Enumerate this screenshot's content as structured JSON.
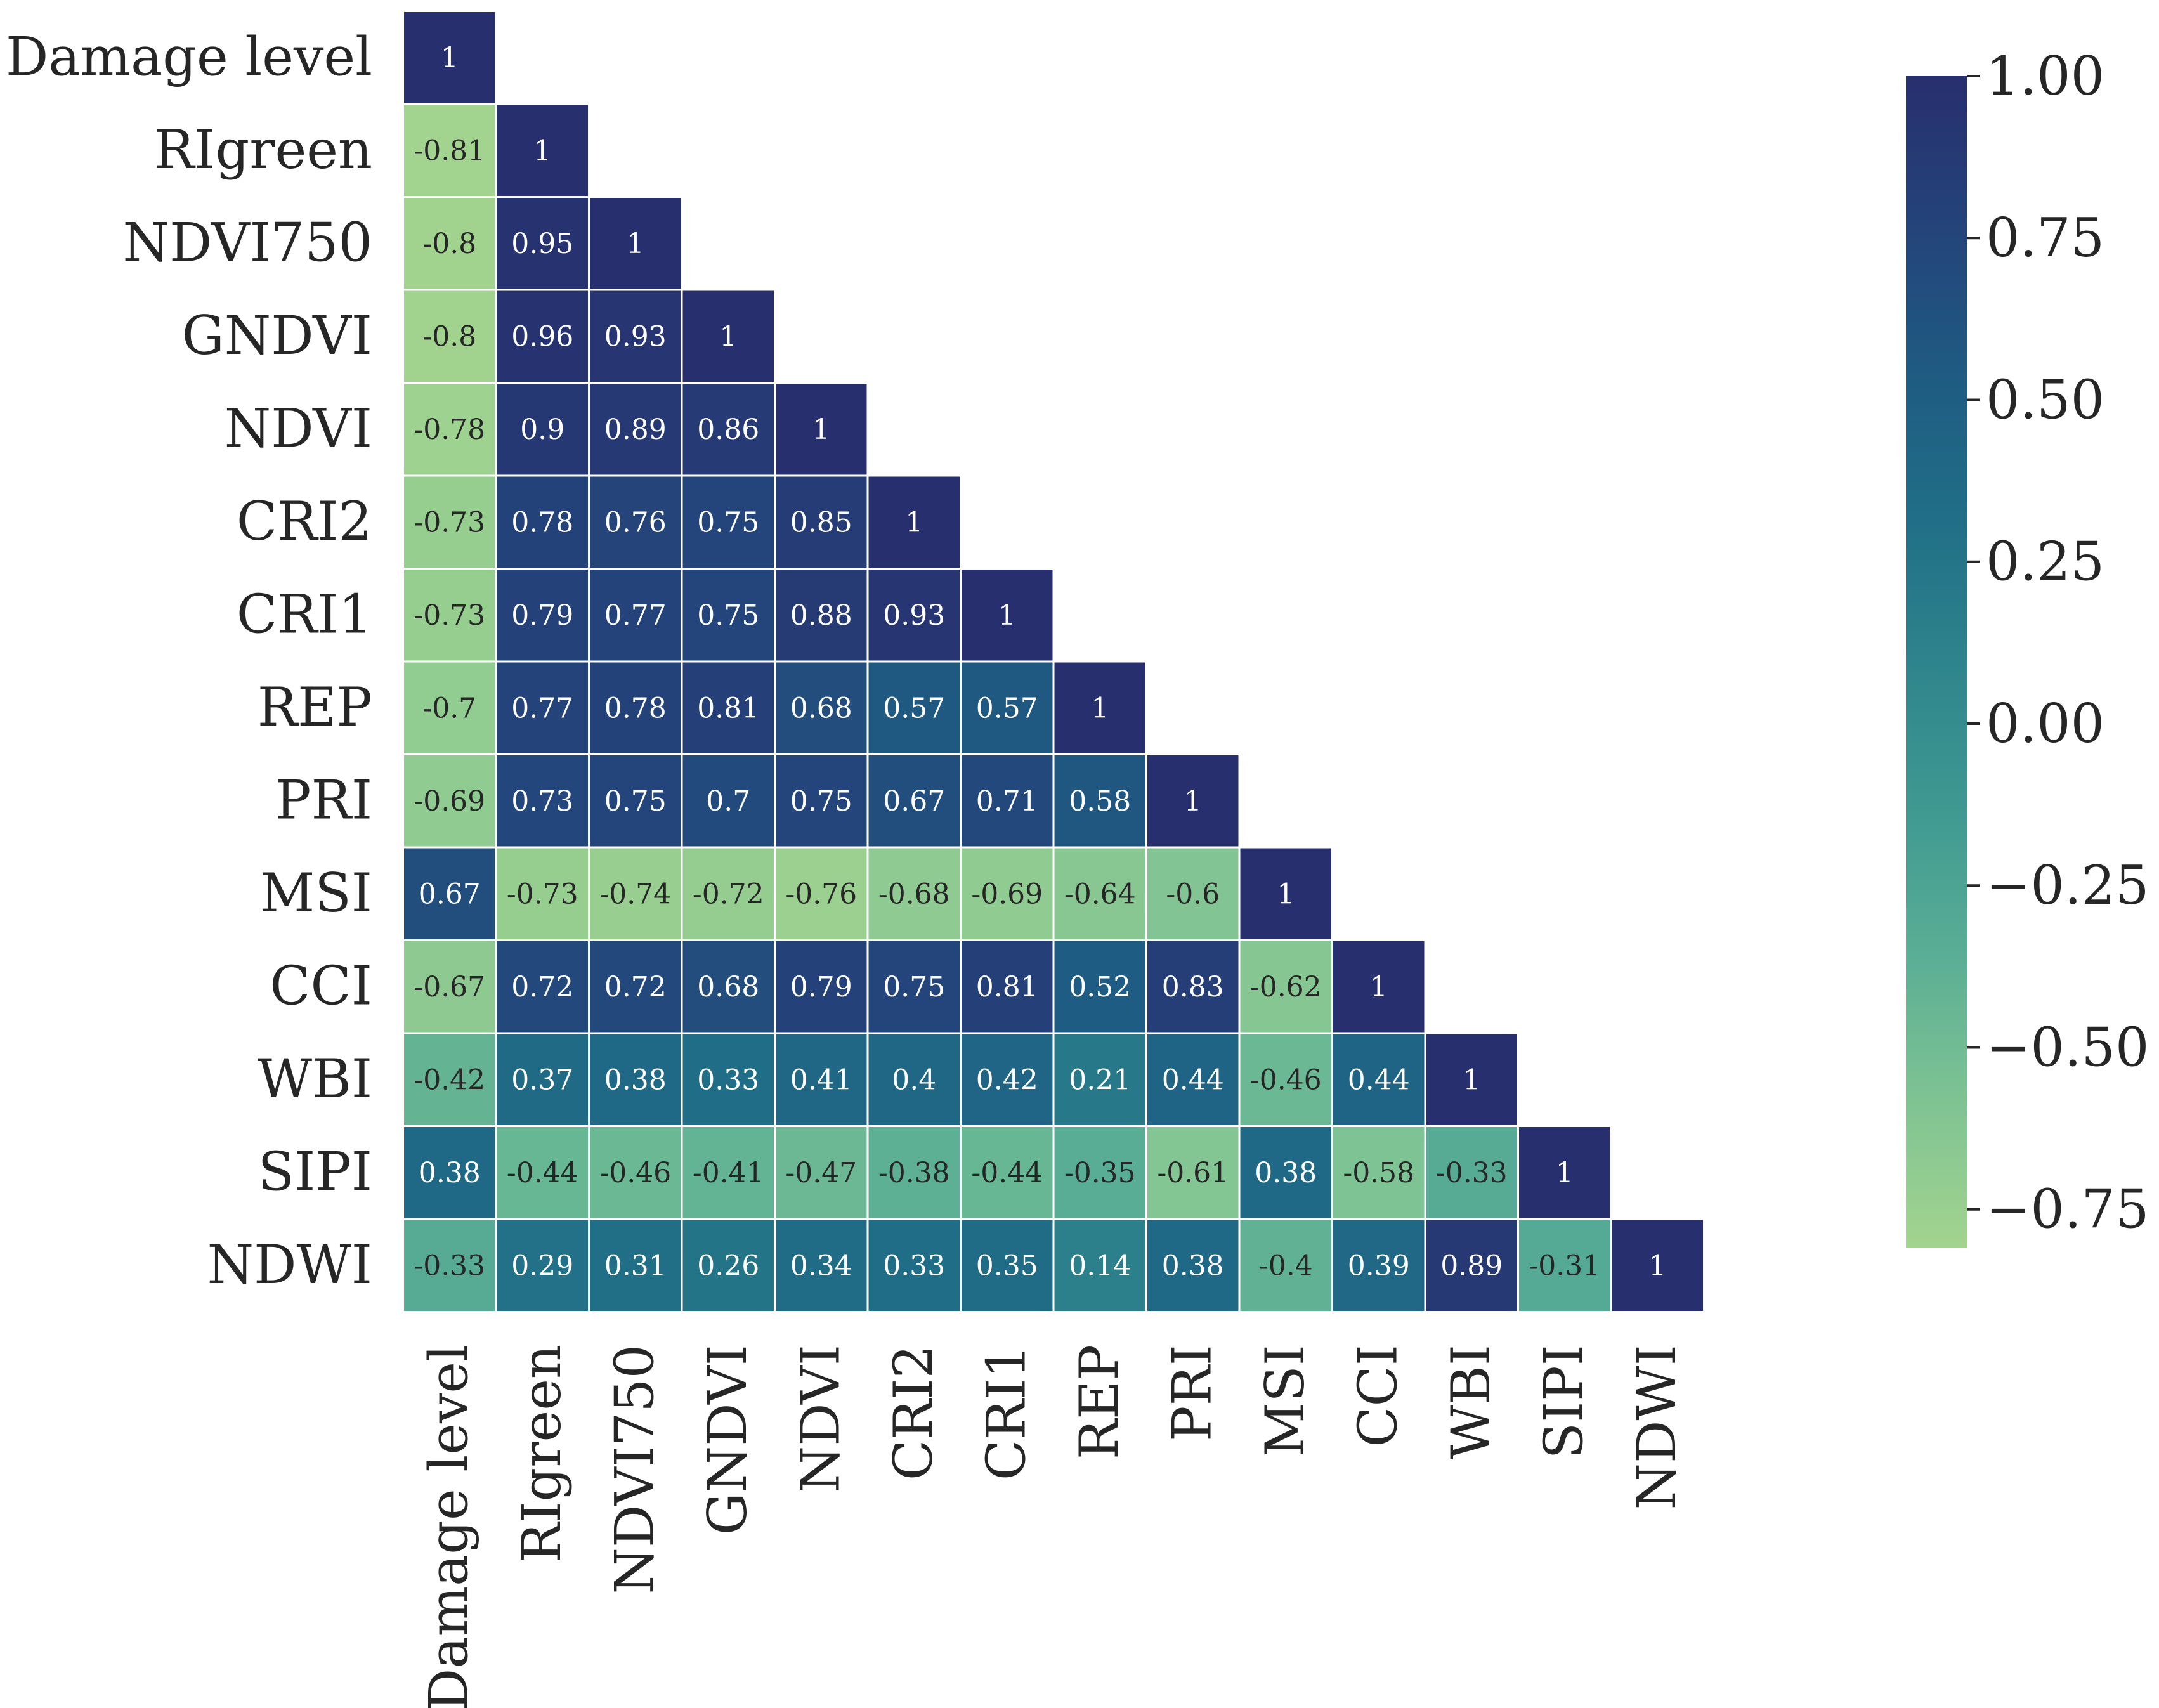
{
  "chart_data": {
    "type": "heatmap",
    "title": "",
    "variables": [
      "Damage level",
      "RIgreen",
      "NDVI750",
      "GNDVI",
      "NDVI",
      "CRI2",
      "CRI1",
      "REP",
      "PRI",
      "MSI",
      "CCI",
      "WBI",
      "SIPI",
      "NDWI"
    ],
    "matrix_lower": [
      [
        "1"
      ],
      [
        "-0.81",
        "1"
      ],
      [
        "-0.8",
        "0.95",
        "1"
      ],
      [
        "-0.8",
        "0.96",
        "0.93",
        "1"
      ],
      [
        "-0.78",
        "0.9",
        "0.89",
        "0.86",
        "1"
      ],
      [
        "-0.73",
        "0.78",
        "0.76",
        "0.75",
        "0.85",
        "1"
      ],
      [
        "-0.73",
        "0.79",
        "0.77",
        "0.75",
        "0.88",
        "0.93",
        "1"
      ],
      [
        "-0.7",
        "0.77",
        "0.78",
        "0.81",
        "0.68",
        "0.57",
        "0.57",
        "1"
      ],
      [
        "-0.69",
        "0.73",
        "0.75",
        "0.7",
        "0.75",
        "0.67",
        "0.71",
        "0.58",
        "1"
      ],
      [
        "0.67",
        "-0.73",
        "-0.74",
        "-0.72",
        "-0.76",
        "-0.68",
        "-0.69",
        "-0.64",
        "-0.6",
        "1"
      ],
      [
        "-0.67",
        "0.72",
        "0.72",
        "0.68",
        "0.79",
        "0.75",
        "0.81",
        "0.52",
        "0.83",
        "-0.62",
        "1"
      ],
      [
        "-0.42",
        "0.37",
        "0.38",
        "0.33",
        "0.41",
        "0.4",
        "0.42",
        "0.21",
        "0.44",
        "-0.46",
        "0.44",
        "1"
      ],
      [
        "0.38",
        "-0.44",
        "-0.46",
        "-0.41",
        "-0.47",
        "-0.38",
        "-0.44",
        "-0.35",
        "-0.61",
        "0.38",
        "-0.58",
        "-0.33",
        "1"
      ],
      [
        "-0.33",
        "0.29",
        "0.31",
        "0.26",
        "0.34",
        "0.33",
        "0.35",
        "0.14",
        "0.38",
        "-0.4",
        "0.39",
        "0.89",
        "-0.31",
        "1"
      ]
    ],
    "colorbar": {
      "range": [
        -0.81,
        1.0
      ],
      "ticks": [
        {
          "value": 1.0,
          "label": "1.00"
        },
        {
          "value": 0.75,
          "label": "0.75"
        },
        {
          "value": 0.5,
          "label": "0.50"
        },
        {
          "value": 0.25,
          "label": "0.25"
        },
        {
          "value": 0.0,
          "label": "0.00"
        },
        {
          "value": -0.25,
          "label": "−0.25"
        },
        {
          "value": -0.5,
          "label": "−0.50"
        },
        {
          "value": -0.75,
          "label": "−0.75"
        }
      ],
      "colors": [
        "#a3d48f",
        "#7fc393",
        "#5aae95",
        "#3f9991",
        "#2e848c",
        "#206e87",
        "#1f5a82",
        "#24437a",
        "#282f6e"
      ]
    }
  }
}
